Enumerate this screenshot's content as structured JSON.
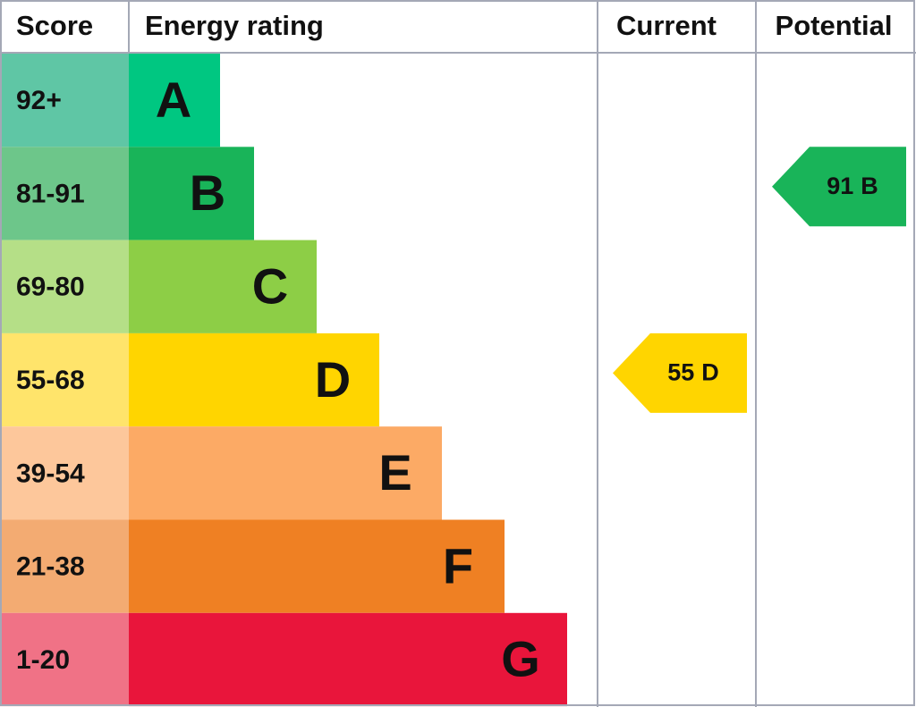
{
  "header": {
    "score": "Score",
    "energy_rating": "Energy rating",
    "current": "Current",
    "potential": "Potential"
  },
  "rows": [
    {
      "score": "92+",
      "rating": "A",
      "color": "#00c781",
      "light_color": "#5fc6a5"
    },
    {
      "score": "81-91",
      "rating": "B",
      "color": "#19b459",
      "light_color": "#6dc68a"
    },
    {
      "score": "69-80",
      "rating": "C",
      "color": "#8dce46",
      "light_color": "#b5df87"
    },
    {
      "score": "55-68",
      "rating": "D",
      "color": "#ffd500",
      "light_color": "#ffe46b"
    },
    {
      "score": "39-54",
      "rating": "E",
      "color": "#fcaa65",
      "light_color": "#fdc79b"
    },
    {
      "score": "21-38",
      "rating": "F",
      "color": "#ef8023",
      "light_color": "#f3ab72"
    },
    {
      "score": "1-20",
      "rating": "G",
      "color": "#e9153b",
      "light_color": "#f07286"
    }
  ],
  "current": {
    "value": 55,
    "rating": "D"
  },
  "potential": {
    "value": 91,
    "rating": "B"
  }
}
